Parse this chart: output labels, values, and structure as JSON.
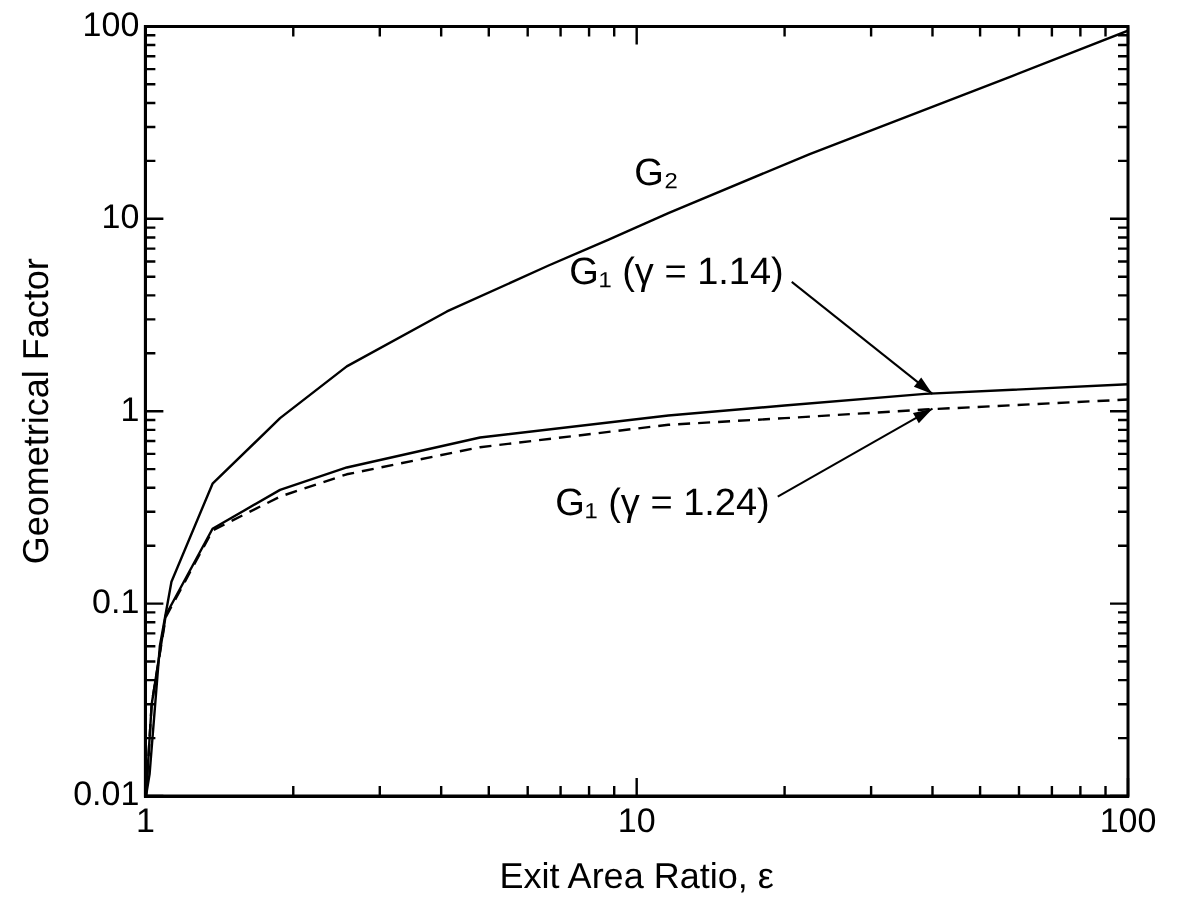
{
  "chart_data": {
    "type": "line",
    "xlabel": "Exit Area Ratio, ε",
    "ylabel": "Geometrical Factor",
    "log": "xy",
    "grid": false,
    "legend": false,
    "marker": "none",
    "xlim": [
      1,
      100
    ],
    "ylim": [
      0.01,
      100
    ],
    "xticks": [
      1,
      {
        "value": 2,
        "label": null
      },
      {
        "value": 3,
        "label": null
      },
      {
        "value": 4,
        "label": null
      },
      {
        "value": 5,
        "label": null
      },
      {
        "value": 6,
        "label": null
      },
      {
        "value": 7,
        "label": null
      },
      {
        "value": 8,
        "label": null
      },
      {
        "value": 9,
        "label": null
      },
      10,
      {
        "value": 20,
        "label": null
      },
      {
        "value": 30,
        "label": null
      },
      {
        "value": 40,
        "label": null
      },
      {
        "value": 50,
        "label": null
      },
      {
        "value": 60,
        "label": null
      },
      {
        "value": 70,
        "label": null
      },
      {
        "value": 80,
        "label": null
      },
      {
        "value": 90,
        "label": null
      },
      100
    ],
    "yticks": [
      0.01,
      {
        "value": 0.02,
        "label": null
      },
      {
        "value": 0.03,
        "label": null
      },
      {
        "value": 0.04,
        "label": null
      },
      {
        "value": 0.05,
        "label": null
      },
      {
        "value": 0.06,
        "label": null
      },
      {
        "value": 0.07,
        "label": null
      },
      {
        "value": 0.08,
        "label": null
      },
      {
        "value": 0.09,
        "label": null
      },
      0.1,
      {
        "value": 0.2,
        "label": null
      },
      {
        "value": 0.3,
        "label": null
      },
      {
        "value": 0.4,
        "label": null
      },
      {
        "value": 0.5,
        "label": null
      },
      {
        "value": 0.6,
        "label": null
      },
      {
        "value": 0.7,
        "label": null
      },
      {
        "value": 0.8,
        "label": null
      },
      {
        "value": 0.9,
        "label": null
      },
      1,
      {
        "value": 2,
        "label": null
      },
      {
        "value": 3,
        "label": null
      },
      {
        "value": 4,
        "label": null
      },
      {
        "value": 5,
        "label": null
      },
      {
        "value": 6,
        "label": null
      },
      {
        "value": 7,
        "label": null
      },
      {
        "value": 8,
        "label": null
      },
      {
        "value": 9,
        "label": null
      },
      10,
      {
        "value": 20,
        "label": null
      },
      {
        "value": 30,
        "label": null
      },
      {
        "value": 40,
        "label": null
      },
      {
        "value": 50,
        "label": null
      },
      {
        "value": 60,
        "label": null
      },
      {
        "value": 70,
        "label": null
      },
      {
        "value": 80,
        "label": null
      },
      {
        "value": 90,
        "label": null
      },
      100
    ],
    "series": [
      {
        "color": "#000000",
        "line_style": "solid",
        "x": [
          1.003,
          1.02,
          1.07,
          1.13,
          1.37,
          1.88,
          2.57,
          4.11,
          6.6,
          8.77,
          11.6,
          22.5,
          57.9,
          100
        ],
        "values": [
          0.01,
          0.013,
          0.06,
          0.13,
          0.42,
          0.92,
          1.71,
          3.3,
          5.7,
          7.8,
          10.7,
          21.7,
          55,
          95
        ]
      },
      {
        "color": "#000000",
        "line_style": "solid",
        "x": [
          1.003,
          1.03,
          1.1,
          1.37,
          1.88,
          2.57,
          4.8,
          11.6,
          20,
          38.6,
          100
        ],
        "values": [
          0.01,
          0.03,
          0.087,
          0.245,
          0.39,
          0.51,
          0.73,
          0.95,
          1.07,
          1.23,
          1.38
        ]
      },
      {
        "color": "#000000",
        "line_style": "dashed",
        "x": [
          1.003,
          1.03,
          1.1,
          1.37,
          1.88,
          2.57,
          4.8,
          11.6,
          20,
          38.6,
          100
        ],
        "values": [
          0.01,
          0.03,
          0.085,
          0.24,
          0.36,
          0.47,
          0.65,
          0.85,
          0.92,
          1.02,
          1.15
        ]
      }
    ],
    "annotations": [
      "G₂",
      {
        "text": "G₁ (γ = 1.14)",
        "x": 40,
        "y": 1.23
      },
      {
        "text": "G₁ (γ = 1.24)",
        "x": 40,
        "y": 1.03
      }
    ]
  }
}
